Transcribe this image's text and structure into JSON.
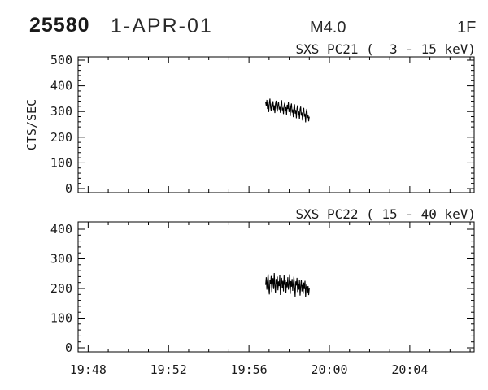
{
  "header": {
    "event_id": "25580",
    "date": "1-APR-01",
    "flare_class": "M4.0",
    "flare_type": "1F"
  },
  "x_axis": {
    "labels": [
      "19:48",
      "19:52",
      "19:56",
      "20:00",
      "20:04"
    ],
    "label_times_min": [
      0,
      4,
      8,
      12,
      16
    ],
    "minor_step_min": 1,
    "xlim_minutes_after_1948": [
      -0.5,
      19.2
    ]
  },
  "chart_data": [
    {
      "type": "line",
      "title": "SXS PC21 (  3 - 15 keV)",
      "ylabel": "CTS/SEC",
      "ylim": [
        0,
        500
      ],
      "yticks": [
        0,
        100,
        200,
        300,
        400,
        500
      ],
      "y_minor_step": 20,
      "x_start": "19:56:50",
      "x_end": "19:59:00",
      "t_start_min": 8.83,
      "t_end_min": 11.0,
      "values": [
        336,
        322,
        345,
        310,
        328,
        298,
        333,
        350,
        316,
        302,
        331,
        318,
        340,
        306,
        324,
        294,
        329,
        342,
        312,
        300,
        326,
        337,
        308,
        318,
        295,
        330,
        344,
        305,
        315,
        290,
        322,
        334,
        303,
        317,
        286,
        326,
        310,
        336,
        298,
        312,
        282,
        320,
        331,
        296,
        308,
        278,
        316,
        328,
        292,
        306,
        274,
        312,
        324,
        288,
        300,
        270,
        308,
        319,
        284,
        296,
        265,
        303,
        314,
        280,
        292,
        258,
        299,
        310,
        276,
        288,
        262,
        280
      ]
    },
    {
      "type": "line",
      "title": "SXS PC22 ( 15 - 40 keV)",
      "ylabel": "",
      "ylim": [
        0,
        400
      ],
      "yticks": [
        0,
        100,
        200,
        300,
        400
      ],
      "y_minor_step": 20,
      "x_start": "19:56:50",
      "x_end": "19:59:00",
      "t_start_min": 8.83,
      "t_end_min": 11.0,
      "values": [
        212,
        238,
        196,
        225,
        248,
        205,
        180,
        228,
        215,
        242,
        188,
        220,
        235,
        198,
        252,
        210,
        184,
        232,
        216,
        240,
        194,
        224,
        208,
        246,
        178,
        218,
        236,
        200,
        226,
        190,
        244,
        212,
        230,
        186,
        222,
        204,
        238,
        196,
        214,
        248,
        182,
        225,
        206,
        232,
        192,
        218,
        240,
        200,
        172,
        224,
        210,
        236,
        188,
        215,
        196,
        228,
        176,
        208,
        230,
        190,
        212,
        182,
        220,
        198,
        226,
        170,
        204,
        216,
        186,
        208,
        178,
        200
      ]
    }
  ]
}
